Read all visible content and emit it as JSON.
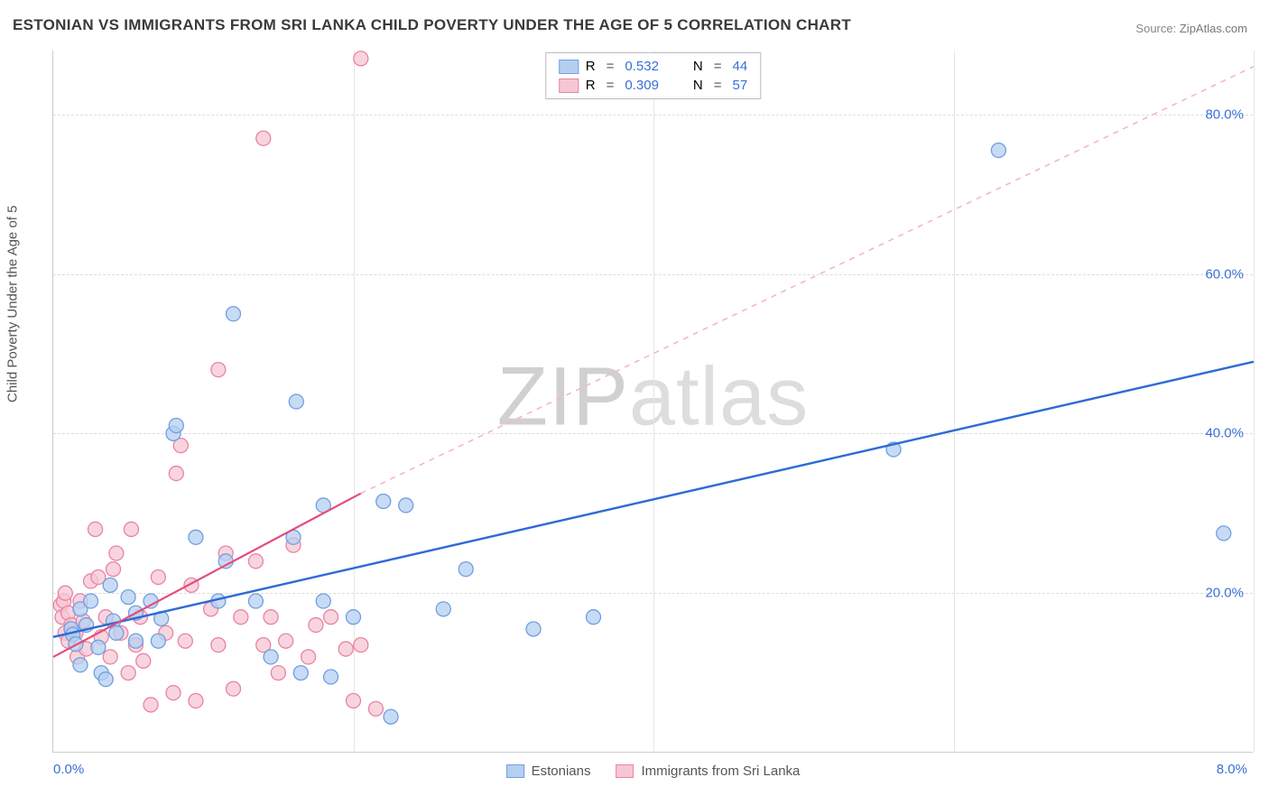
{
  "title": "ESTONIAN VS IMMIGRANTS FROM SRI LANKA CHILD POVERTY UNDER THE AGE OF 5 CORRELATION CHART",
  "source_label": "Source:",
  "source_value": "ZipAtlas.com",
  "ylabel": "Child Poverty Under the Age of 5",
  "watermark_a": "ZIP",
  "watermark_b": "atlas",
  "chart": {
    "type": "scatter",
    "xlim": [
      0,
      8
    ],
    "ylim": [
      0,
      88
    ],
    "x_ticks": [
      0,
      2,
      4,
      6,
      8
    ],
    "x_tick_labels_shown": {
      "left": "0.0%",
      "right": "8.0%"
    },
    "y_ticks": [
      20,
      40,
      60,
      80
    ],
    "y_tick_labels": [
      "20.0%",
      "40.0%",
      "60.0%",
      "80.0%"
    ],
    "grid_color": "#dddddd",
    "vgrid_color": "#e6e6e6",
    "background_color": "#ffffff",
    "marker_radius": 8,
    "marker_stroke_width": 1.3,
    "series": [
      {
        "name": "Estonians",
        "color_fill": "#b6cff0",
        "color_stroke": "#6e9fe0",
        "R": "0.532",
        "N": "44",
        "trend": {
          "x1": 0,
          "y1": 14.5,
          "x2": 8,
          "y2": 49,
          "stroke": "#2e6bd6",
          "width": 2.4,
          "dash": "none"
        },
        "points": [
          [
            0.12,
            15.5
          ],
          [
            0.13,
            14.8
          ],
          [
            0.15,
            13.6
          ],
          [
            0.18,
            18.0
          ],
          [
            0.18,
            11.0
          ],
          [
            0.22,
            16.0
          ],
          [
            0.25,
            19.0
          ],
          [
            0.3,
            13.2
          ],
          [
            0.32,
            10.0
          ],
          [
            0.35,
            9.2
          ],
          [
            0.38,
            21.0
          ],
          [
            0.4,
            16.5
          ],
          [
            0.42,
            15.0
          ],
          [
            0.5,
            19.5
          ],
          [
            0.55,
            17.5
          ],
          [
            0.55,
            14.0
          ],
          [
            0.65,
            19.0
          ],
          [
            0.7,
            14.0
          ],
          [
            0.72,
            16.8
          ],
          [
            0.8,
            40.0
          ],
          [
            0.82,
            41.0
          ],
          [
            0.95,
            27.0
          ],
          [
            1.1,
            19.0
          ],
          [
            1.15,
            24.0
          ],
          [
            1.2,
            55.0
          ],
          [
            1.35,
            19.0
          ],
          [
            1.45,
            12.0
          ],
          [
            1.6,
            27.0
          ],
          [
            1.62,
            44.0
          ],
          [
            1.65,
            10.0
          ],
          [
            1.8,
            31.0
          ],
          [
            1.8,
            19.0
          ],
          [
            1.85,
            9.5
          ],
          [
            2.0,
            17.0
          ],
          [
            2.2,
            31.5
          ],
          [
            2.25,
            4.5
          ],
          [
            2.35,
            31.0
          ],
          [
            2.6,
            18.0
          ],
          [
            2.75,
            23.0
          ],
          [
            3.2,
            15.5
          ],
          [
            3.6,
            17.0
          ],
          [
            5.6,
            38.0
          ],
          [
            6.3,
            75.5
          ],
          [
            7.8,
            27.5
          ]
        ]
      },
      {
        "name": "Immigrants from Sri Lanka",
        "color_fill": "#f6c7d3",
        "color_stroke": "#e983a3",
        "R": "0.309",
        "N": "57",
        "trend_solid": {
          "x1": 0,
          "y1": 12.0,
          "x2": 2.05,
          "y2": 32.5,
          "stroke": "#e44d7a",
          "width": 2.2,
          "dash": "none"
        },
        "trend_dash": {
          "x1": 2.05,
          "y1": 32.5,
          "x2": 8,
          "y2": 86,
          "stroke": "#f4b6c8",
          "width": 1.6,
          "dash": "6,6"
        },
        "points": [
          [
            0.05,
            18.5
          ],
          [
            0.06,
            17.0
          ],
          [
            0.07,
            19.0
          ],
          [
            0.08,
            15.0
          ],
          [
            0.08,
            20.0
          ],
          [
            0.1,
            17.5
          ],
          [
            0.1,
            14.0
          ],
          [
            0.12,
            16.0
          ],
          [
            0.15,
            15.0
          ],
          [
            0.16,
            12.0
          ],
          [
            0.18,
            19.0
          ],
          [
            0.2,
            16.5
          ],
          [
            0.22,
            13.0
          ],
          [
            0.25,
            21.5
          ],
          [
            0.28,
            28.0
          ],
          [
            0.3,
            22.0
          ],
          [
            0.32,
            14.5
          ],
          [
            0.35,
            17.0
          ],
          [
            0.38,
            12.0
          ],
          [
            0.4,
            23.0
          ],
          [
            0.42,
            25.0
          ],
          [
            0.45,
            15.0
          ],
          [
            0.5,
            10.0
          ],
          [
            0.52,
            28.0
          ],
          [
            0.55,
            13.5
          ],
          [
            0.58,
            17.0
          ],
          [
            0.6,
            11.5
          ],
          [
            0.65,
            6.0
          ],
          [
            0.7,
            22.0
          ],
          [
            0.75,
            15.0
          ],
          [
            0.8,
            7.5
          ],
          [
            0.82,
            35.0
          ],
          [
            0.85,
            38.5
          ],
          [
            0.88,
            14.0
          ],
          [
            0.92,
            21.0
          ],
          [
            0.95,
            6.5
          ],
          [
            1.05,
            18.0
          ],
          [
            1.1,
            13.5
          ],
          [
            1.1,
            48.0
          ],
          [
            1.15,
            25.0
          ],
          [
            1.2,
            8.0
          ],
          [
            1.25,
            17.0
          ],
          [
            1.35,
            24.0
          ],
          [
            1.4,
            13.5
          ],
          [
            1.4,
            77.0
          ],
          [
            1.45,
            17.0
          ],
          [
            1.5,
            10.0
          ],
          [
            1.55,
            14.0
          ],
          [
            1.6,
            26.0
          ],
          [
            1.7,
            12.0
          ],
          [
            1.75,
            16.0
          ],
          [
            1.85,
            17.0
          ],
          [
            1.95,
            13.0
          ],
          [
            2.0,
            6.5
          ],
          [
            2.05,
            87.0
          ],
          [
            2.05,
            13.5
          ],
          [
            2.15,
            5.5
          ]
        ]
      }
    ]
  },
  "legend_top": [
    {
      "swatch_fill": "#b6cff0",
      "swatch_stroke": "#6e9fe0",
      "r_label": "R",
      "r_val": "0.532",
      "n_label": "N",
      "n_val": "44"
    },
    {
      "swatch_fill": "#f6c7d3",
      "swatch_stroke": "#e983a3",
      "r_label": "R",
      "r_val": "0.309",
      "n_label": "N",
      "n_val": "57"
    }
  ],
  "legend_bottom": [
    {
      "swatch_fill": "#b6cff0",
      "swatch_stroke": "#6e9fe0",
      "label": "Estonians"
    },
    {
      "swatch_fill": "#f6c7d3",
      "swatch_stroke": "#e983a3",
      "label": "Immigrants from Sri Lanka"
    }
  ]
}
